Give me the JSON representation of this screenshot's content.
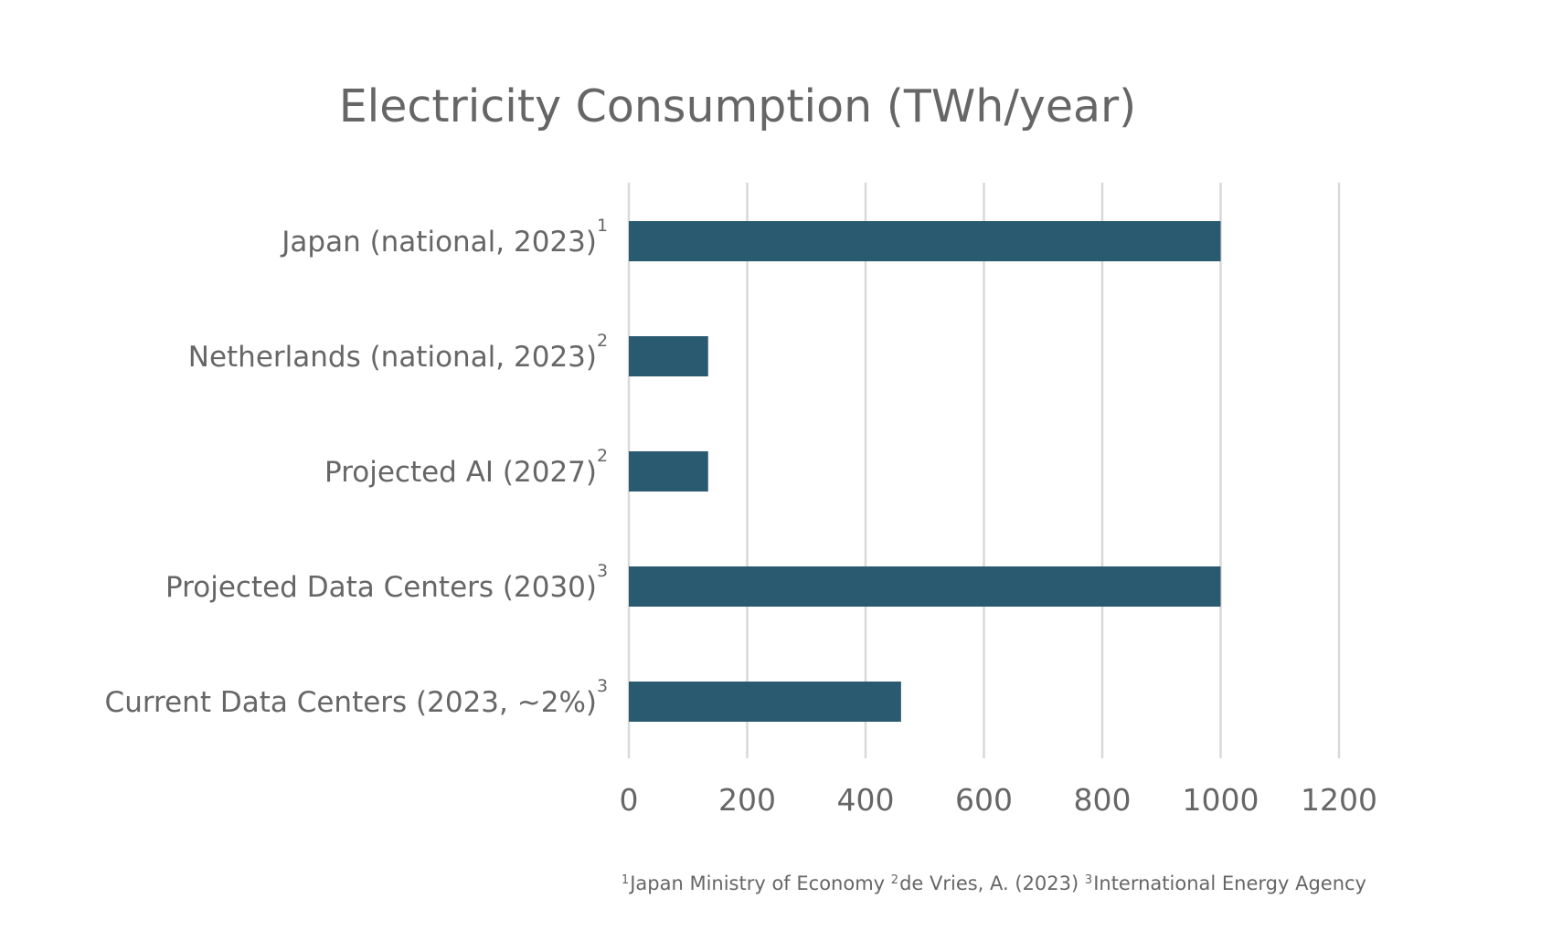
{
  "chart_data": {
    "type": "bar",
    "orientation": "horizontal",
    "title": "Electricity Consumption (TWh/year)",
    "xlabel": "",
    "ylabel": "",
    "categories": [
      "Japan (national, 2023)",
      "Netherlands (national, 2023)",
      "Projected AI (2027)",
      "Projected Data Centers (2030)",
      "Current Data Centers (2023, ~2%)"
    ],
    "footnote_markers": [
      "1",
      "2",
      "2",
      "3",
      "3"
    ],
    "values": [
      1000,
      134,
      134,
      1000,
      460
    ],
    "xlim": [
      0,
      1200
    ],
    "xticks": [
      0,
      200,
      400,
      600,
      800,
      1000,
      1200
    ],
    "grid": true,
    "legend": "none",
    "bar_color": "#2a5a70"
  },
  "footnotes": [
    {
      "marker": "1",
      "text": "Japan Ministry of Economy"
    },
    {
      "marker": "2",
      "text": "de Vries, A. (2023)"
    },
    {
      "marker": "3",
      "text": "International Energy Agency"
    }
  ]
}
